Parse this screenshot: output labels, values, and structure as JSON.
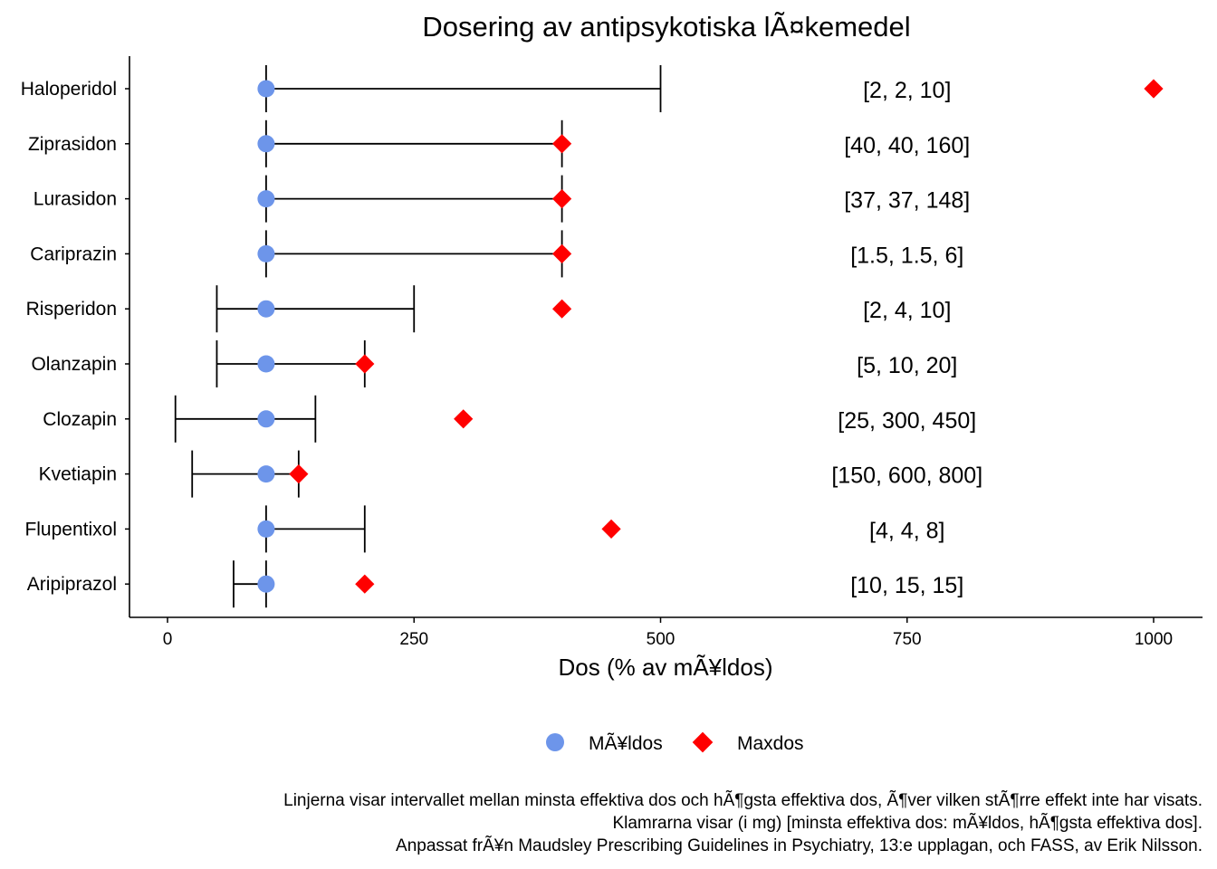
{
  "chart_data": {
    "type": "dot-range",
    "title": "Dosering av antipsykotiska lÃ¤kemedel",
    "xlabel": "Dos (% av mÃ¥ldos)",
    "ylabel": "",
    "xlim": [
      -8,
      1030
    ],
    "x_ticks": [
      0,
      250,
      500,
      750,
      1000
    ],
    "grid": false,
    "legend_position": "bottom",
    "legend": [
      {
        "key": "target",
        "label": "MÃ¥ldos",
        "color": "#6d95ea",
        "shape": "circle"
      },
      {
        "key": "max",
        "label": "Maxdos",
        "color": "#ff0000",
        "shape": "diamond"
      }
    ],
    "bracket_x": 750,
    "drugs": [
      {
        "name": "Haloperidol",
        "target": 100,
        "max": 1000,
        "range": [
          100,
          500
        ],
        "bracket": "[2, 2, 10]"
      },
      {
        "name": "Ziprasidon",
        "target": 100,
        "max": 400,
        "range": [
          100,
          400
        ],
        "bracket": "[40, 40, 160]"
      },
      {
        "name": "Lurasidon",
        "target": 100,
        "max": 400,
        "range": [
          100,
          400
        ],
        "bracket": "[37, 37, 148]"
      },
      {
        "name": "Cariprazin",
        "target": 100,
        "max": 400,
        "range": [
          100,
          400
        ],
        "bracket": "[1.5, 1.5, 6]"
      },
      {
        "name": "Risperidon",
        "target": 100,
        "max": 400,
        "range": [
          50,
          250
        ],
        "bracket": "[2, 4, 10]"
      },
      {
        "name": "Olanzapin",
        "target": 100,
        "max": 200,
        "range": [
          50,
          200
        ],
        "bracket": "[5, 10, 20]"
      },
      {
        "name": "Clozapin",
        "target": 100,
        "max": 300,
        "range": [
          8,
          150
        ],
        "bracket": "[25, 300, 450]"
      },
      {
        "name": "Kvetiapin",
        "target": 100,
        "max": 133,
        "range": [
          25,
          133
        ],
        "bracket": "[150, 600, 800]"
      },
      {
        "name": "Flupentixol",
        "target": 100,
        "max": 450,
        "range": [
          100,
          200
        ],
        "bracket": "[4, 4, 8]"
      },
      {
        "name": "Aripiprazol",
        "target": 100,
        "max": 200,
        "range": [
          67,
          100
        ],
        "bracket": "[10, 15, 15]"
      }
    ],
    "caption": [
      "Linjerna visar intervallet mellan minsta effektiva dos och hÃ¶gsta effektiva dos, Ã¶ver vilken stÃ¶rre effekt inte har visats.",
      "Klamrarna visar (i mg) [minsta effektiva dos: mÃ¥ldos, hÃ¶gsta effektiva dos].",
      "Anpassat frÃ¥n Maudsley Prescribing Guidelines in Psychiatry, 13:e upplagan, och FASS, av Erik Nilsson."
    ]
  }
}
